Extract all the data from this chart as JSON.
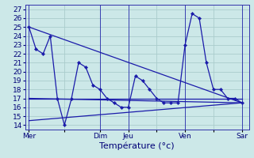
{
  "background_color": "#cce8e8",
  "grid_color": "#aacccc",
  "line_color": "#1a1aaa",
  "xlabel": "Température (°c)",
  "ylim": [
    13.5,
    27.5
  ],
  "yticks": [
    14,
    15,
    16,
    17,
    18,
    19,
    20,
    21,
    22,
    23,
    24,
    25,
    26,
    27
  ],
  "day_labels": [
    "Mer",
    "",
    "Dim",
    "Jeu",
    "",
    "Ven",
    "",
    "Sar"
  ],
  "day_x": [
    0,
    5,
    10,
    14,
    18,
    22,
    26,
    30
  ],
  "vlines": [
    0,
    10,
    14,
    22,
    30
  ],
  "xlim": [
    -0.5,
    31
  ],
  "series": [
    {
      "x": [
        0,
        1,
        2,
        3,
        4,
        5,
        6,
        7,
        8,
        9,
        10,
        11,
        12,
        13,
        14,
        15,
        16,
        17,
        18,
        19,
        20,
        21,
        22,
        23,
        24,
        25,
        26,
        27,
        28,
        29,
        30
      ],
      "y": [
        25,
        22.5,
        22,
        24,
        17,
        14,
        17,
        21,
        20.5,
        18.5,
        18,
        17,
        16.5,
        16,
        16,
        19.5,
        19,
        18,
        17,
        16.5,
        16.5,
        16.5,
        23,
        26.5,
        26,
        21,
        18,
        18,
        17,
        17,
        16.5
      ],
      "marker": true
    },
    {
      "x": [
        0,
        30
      ],
      "y": [
        25,
        16.5
      ],
      "marker": false
    },
    {
      "x": [
        0,
        30
      ],
      "y": [
        17,
        17
      ],
      "marker": false
    },
    {
      "x": [
        0,
        30
      ],
      "y": [
        14.5,
        16.5
      ],
      "marker": false
    },
    {
      "x": [
        0,
        30
      ],
      "y": [
        17,
        16.5
      ],
      "marker": false
    }
  ],
  "fontsize_label": 8,
  "fontsize_tick": 6.5
}
